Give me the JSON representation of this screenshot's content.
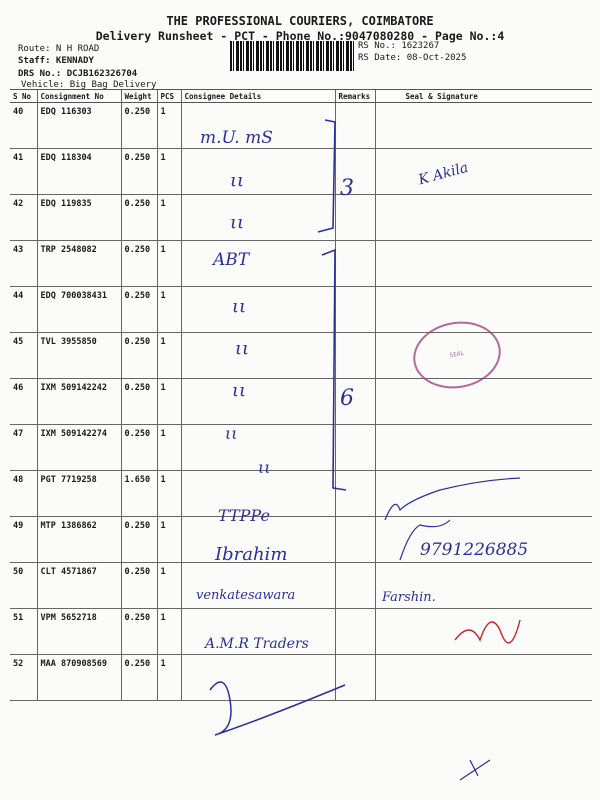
{
  "header": {
    "company": "THE PROFESSIONAL COURIERS, COIMBATORE",
    "subtitle": "Delivery Runsheet - PCT - Phone No.:9047080280 - Page No.:4",
    "route": "Route: N H ROAD",
    "staff": "Staff: KENNADY",
    "drs_no": "DRS No.: DCJB162326704",
    "vehicle": "Vehicle: Big Bag Delivery",
    "rs_no": "RS No.: 1623267",
    "rs_date": "RS Date: 08-Oct-2025"
  },
  "table": {
    "columns": [
      "S No",
      "Consignment No",
      "Weight",
      "PCS",
      "Consignee Details",
      "Remarks",
      "Seal & Signature"
    ],
    "rows": [
      {
        "sno": "40",
        "consignment": "EDQ 116303",
        "weight": "0.250",
        "pcs": "1"
      },
      {
        "sno": "41",
        "consignment": "EDQ 118304",
        "weight": "0.250",
        "pcs": "1"
      },
      {
        "sno": "42",
        "consignment": "EDQ 119835",
        "weight": "0.250",
        "pcs": "1"
      },
      {
        "sno": "43",
        "consignment": "TRP 2548082",
        "weight": "0.250",
        "pcs": "1"
      },
      {
        "sno": "44",
        "consignment": "EDQ 700038431",
        "weight": "0.250",
        "pcs": "1"
      },
      {
        "sno": "45",
        "consignment": "TVL 3955850",
        "weight": "0.250",
        "pcs": "1"
      },
      {
        "sno": "46",
        "consignment": "IXM 509142242",
        "weight": "0.250",
        "pcs": "1"
      },
      {
        "sno": "47",
        "consignment": "IXM 509142274",
        "weight": "0.250",
        "pcs": "1"
      },
      {
        "sno": "48",
        "consignment": "PGT 7719258",
        "weight": "1.650",
        "pcs": "1"
      },
      {
        "sno": "49",
        "consignment": "MTP 1386862",
        "weight": "0.250",
        "pcs": "1"
      },
      {
        "sno": "50",
        "consignment": "CLT 4571867",
        "weight": "0.250",
        "pcs": "1"
      },
      {
        "sno": "51",
        "consignment": "VPM 5652718",
        "weight": "0.250",
        "pcs": "1"
      },
      {
        "sno": "52",
        "consignment": "MAA 870908569",
        "weight": "0.250",
        "pcs": "1"
      }
    ]
  },
  "handwriting": {
    "h1": "m.U. mS",
    "h2": "ABT",
    "h3": "TTPPe",
    "h4": "Ibrahim",
    "h5": "venkatesawara",
    "h6": "A.M.R Traders",
    "h7": "Farshin.",
    "h8": "9791226885",
    "h9": "K Akila",
    "h10": "3",
    "h11": "6"
  },
  "colors": {
    "ink_blue": "#2b2f9e",
    "ink_red": "#c8232c",
    "stamp": "#9a3a7a"
  }
}
